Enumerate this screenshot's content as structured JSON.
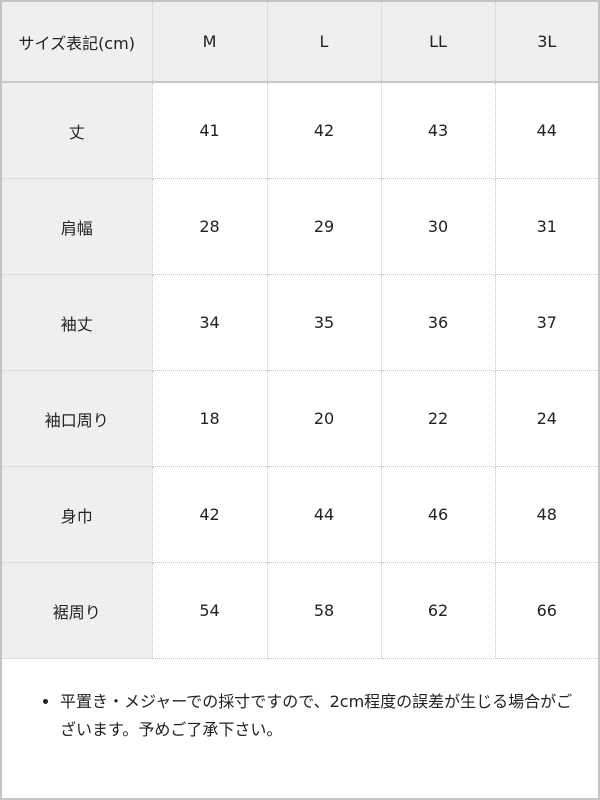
{
  "table": {
    "header": [
      "サイズ表記(cm)",
      "M",
      "L",
      "LL",
      "3L"
    ],
    "rows": [
      {
        "label": "丈",
        "values": [
          "41",
          "42",
          "43",
          "44"
        ]
      },
      {
        "label": "肩幅",
        "values": [
          "28",
          "29",
          "30",
          "31"
        ]
      },
      {
        "label": "袖丈",
        "values": [
          "34",
          "35",
          "36",
          "37"
        ]
      },
      {
        "label": "袖口周り",
        "values": [
          "18",
          "20",
          "22",
          "24"
        ]
      },
      {
        "label": "身巾",
        "values": [
          "42",
          "44",
          "46",
          "48"
        ]
      },
      {
        "label": "裾周り",
        "values": [
          "54",
          "58",
          "62",
          "66"
        ]
      }
    ]
  },
  "note": "平置き・メジャーでの採寸ですので、2cm程度の誤差が生じる場合がございます。予めご了承下さい。"
}
